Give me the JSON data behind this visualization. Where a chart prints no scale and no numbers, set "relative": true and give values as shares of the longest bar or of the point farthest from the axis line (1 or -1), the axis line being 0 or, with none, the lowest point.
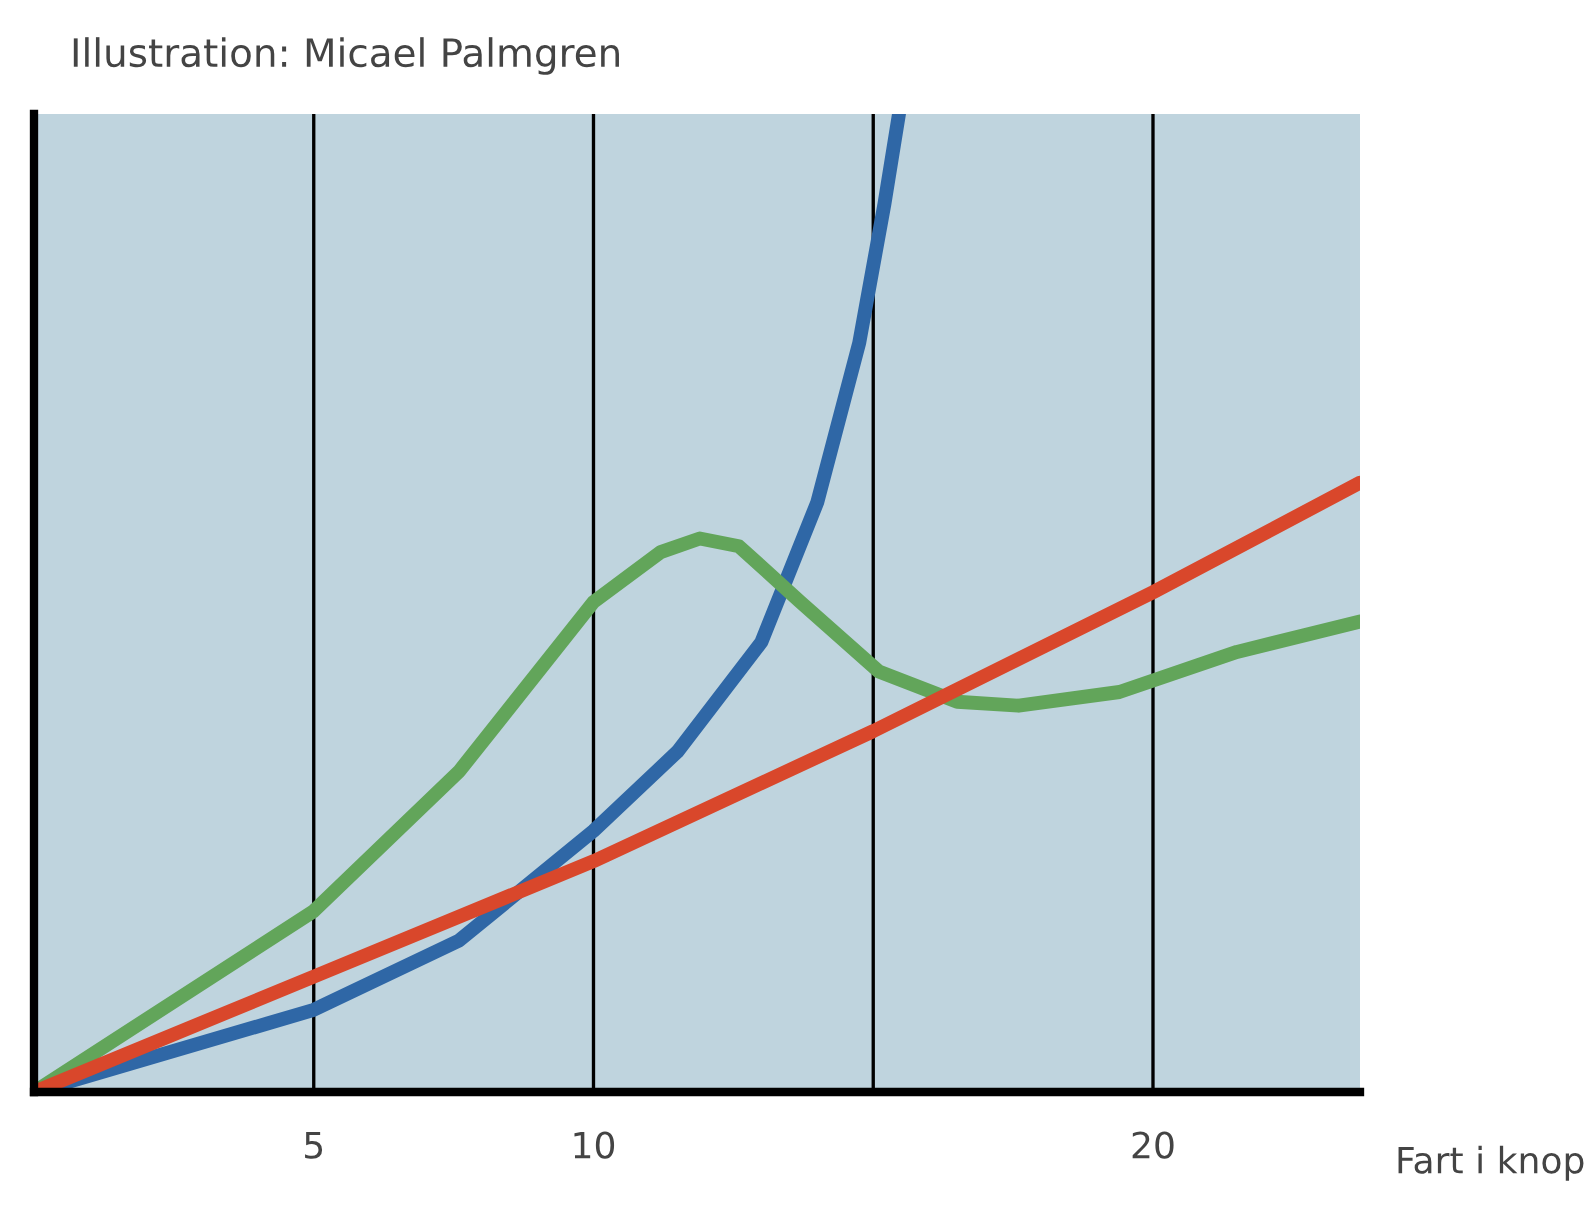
{
  "chart_data": {
    "type": "line",
    "relative": true,
    "xlabel": "Fart i knop",
    "annotations": [
      "Illustration: Micael Palmgren"
    ],
    "xlim": [
      0,
      23.7
    ],
    "xticks": [
      5,
      10,
      {
        "value": 15,
        "label": null
      },
      20
    ],
    "grid": "x",
    "series": [
      {
        "color": "#2f67a6",
        "x": [
          0,
          5,
          7.6,
          10,
          11.5,
          13,
          14,
          14.75,
          15.2,
          15.46
        ],
        "values": [
          0,
          0.084,
          0.155,
          0.267,
          0.348,
          0.46,
          0.603,
          0.766,
          0.908,
          1.0
        ]
      },
      {
        "color": "#62a55a",
        "x": [
          0,
          5,
          7.6,
          10,
          11.2,
          11.9,
          12.6,
          13.7,
          15.1,
          16.5,
          17.6,
          19.4,
          21.5,
          23.7
        ],
        "values": [
          0,
          0.185,
          0.328,
          0.501,
          0.552,
          0.566,
          0.558,
          0.501,
          0.43,
          0.399,
          0.395,
          0.409,
          0.45,
          0.481
        ]
      },
      {
        "color": "#d9472b",
        "x": [
          0,
          5,
          10,
          15,
          20,
          23.7
        ],
        "values": [
          0,
          0.118,
          0.236,
          0.369,
          0.511,
          0.623
        ]
      }
    ]
  }
}
